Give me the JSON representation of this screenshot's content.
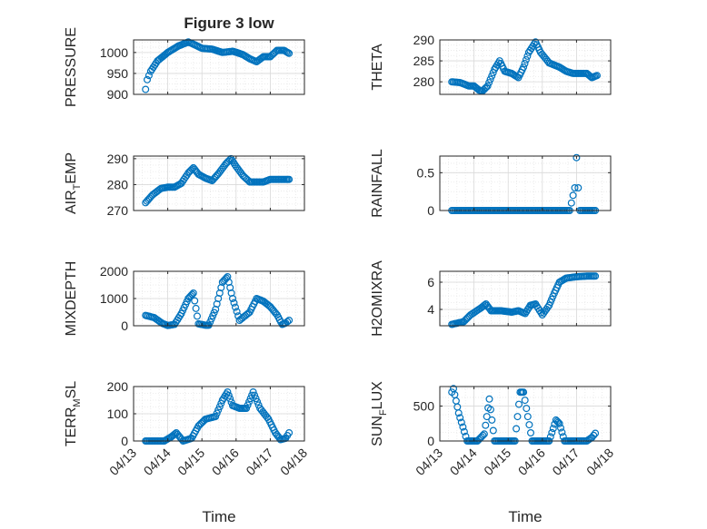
{
  "figure": {
    "title": "Figure 3 low",
    "marker_color": "#0072BD",
    "axis_color": "#262626",
    "grid_color": "#d9d9d9",
    "minor_grid_color": "#e8e8e8"
  },
  "chart_data": [
    {
      "type": "scatter",
      "ylabel": "PRESSURE",
      "ylim": [
        900,
        1030
      ],
      "yticks": [
        "900",
        "950",
        "1000"
      ],
      "ytick_values": [
        900,
        950,
        1000
      ],
      "xlim": [
        0,
        5
      ],
      "xticks": [
        "04/13",
        "04/14",
        "04/15",
        "04/16",
        "04/17",
        "04/18"
      ],
      "show_xticklabels": false,
      "grid": true,
      "anchors": [
        [
          0.35,
          912
        ],
        [
          0.4,
          935
        ],
        [
          0.5,
          955
        ],
        [
          0.7,
          980
        ],
        [
          1.0,
          1000
        ],
        [
          1.3,
          1015
        ],
        [
          1.6,
          1025
        ],
        [
          1.8,
          1018
        ],
        [
          2.0,
          1010
        ],
        [
          2.3,
          1008
        ],
        [
          2.6,
          1000
        ],
        [
          2.9,
          1003
        ],
        [
          3.2,
          995
        ],
        [
          3.4,
          985
        ],
        [
          3.6,
          978
        ],
        [
          3.8,
          990
        ],
        [
          4.0,
          990
        ],
        [
          4.2,
          1005
        ],
        [
          4.4,
          1005
        ],
        [
          4.55,
          998
        ]
      ]
    },
    {
      "type": "scatter",
      "ylabel": "THETA",
      "ylim": [
        277,
        290
      ],
      "yticks": [
        "280",
        "285",
        "290"
      ],
      "ytick_values": [
        280,
        285,
        290
      ],
      "xlim": [
        0,
        5
      ],
      "xticks": [
        "04/13",
        "04/14",
        "04/15",
        "04/16",
        "04/17",
        "04/18"
      ],
      "show_xticklabels": false,
      "grid": true,
      "anchors": [
        [
          0.35,
          280
        ],
        [
          0.6,
          279.8
        ],
        [
          0.85,
          279
        ],
        [
          1.0,
          279
        ],
        [
          1.15,
          278
        ],
        [
          1.25,
          277.8
        ],
        [
          1.4,
          279
        ],
        [
          1.6,
          283
        ],
        [
          1.75,
          285
        ],
        [
          1.9,
          282.5
        ],
        [
          2.1,
          282
        ],
        [
          2.3,
          281
        ],
        [
          2.45,
          283.5
        ],
        [
          2.6,
          287
        ],
        [
          2.8,
          289.5
        ],
        [
          2.95,
          287
        ],
        [
          3.2,
          284.5
        ],
        [
          3.5,
          283.5
        ],
        [
          3.7,
          282.5
        ],
        [
          3.9,
          282
        ],
        [
          4.1,
          282
        ],
        [
          4.3,
          282
        ],
        [
          4.45,
          281
        ],
        [
          4.6,
          281.5
        ]
      ]
    },
    {
      "type": "scatter",
      "ylabel": "AIRTEMP",
      "ylabel_main": "AIR",
      "ylabel_sub": "T",
      "ylabel_rest": "EMP",
      "ylim": [
        270,
        291
      ],
      "yticks": [
        "270",
        "280",
        "290"
      ],
      "ytick_values": [
        270,
        280,
        290
      ],
      "xlim": [
        0,
        5
      ],
      "xticks": [
        "04/13",
        "04/14",
        "04/15",
        "04/16",
        "04/17",
        "04/18"
      ],
      "show_xticklabels": false,
      "grid": true,
      "anchors": [
        [
          0.35,
          273
        ],
        [
          0.55,
          276
        ],
        [
          0.8,
          278.5
        ],
        [
          1.0,
          279
        ],
        [
          1.2,
          279
        ],
        [
          1.4,
          280.5
        ],
        [
          1.6,
          284.5
        ],
        [
          1.75,
          286.5
        ],
        [
          1.9,
          284
        ],
        [
          2.1,
          282.5
        ],
        [
          2.3,
          281.5
        ],
        [
          2.5,
          284.5
        ],
        [
          2.7,
          288
        ],
        [
          2.85,
          290
        ],
        [
          3.0,
          287
        ],
        [
          3.2,
          283.5
        ],
        [
          3.4,
          281
        ],
        [
          3.6,
          281
        ],
        [
          3.8,
          281
        ],
        [
          4.0,
          282
        ],
        [
          4.2,
          282
        ],
        [
          4.4,
          282
        ],
        [
          4.55,
          282
        ]
      ]
    },
    {
      "type": "scatter",
      "ylabel": "RAINFALL",
      "ylim": [
        0,
        0.72
      ],
      "yticks": [
        "0",
        "0.5"
      ],
      "ytick_values": [
        0,
        0.5
      ],
      "xlim": [
        0,
        5
      ],
      "xticks": [
        "04/13",
        "04/14",
        "04/15",
        "04/16",
        "04/17",
        "04/18"
      ],
      "show_xticklabels": false,
      "grid": true,
      "anchors": [
        [
          0.35,
          0
        ],
        [
          3.8,
          0
        ],
        [
          3.95,
          0.3
        ],
        [
          4.0,
          0.7
        ],
        [
          4.05,
          0.3
        ],
        [
          4.1,
          0
        ],
        [
          4.55,
          0
        ]
      ]
    },
    {
      "type": "scatter",
      "ylabel": "MIXDEPTH",
      "ylim": [
        0,
        2000
      ],
      "yticks": [
        "0",
        "1000",
        "2000"
      ],
      "ytick_values": [
        0,
        1000,
        2000
      ],
      "xlim": [
        0,
        5
      ],
      "xticks": [
        "04/13",
        "04/14",
        "04/15",
        "04/16",
        "04/17",
        "04/18"
      ],
      "show_xticklabels": false,
      "grid": true,
      "anchors": [
        [
          0.35,
          380
        ],
        [
          0.6,
          300
        ],
        [
          0.85,
          80
        ],
        [
          1.0,
          10
        ],
        [
          1.2,
          50
        ],
        [
          1.4,
          450
        ],
        [
          1.6,
          1000
        ],
        [
          1.75,
          1200
        ],
        [
          1.9,
          70
        ],
        [
          2.1,
          20
        ],
        [
          2.2,
          20
        ],
        [
          2.4,
          600
        ],
        [
          2.6,
          1600
        ],
        [
          2.75,
          1800
        ],
        [
          2.9,
          1000
        ],
        [
          3.1,
          200
        ],
        [
          3.4,
          500
        ],
        [
          3.6,
          1000
        ],
        [
          3.8,
          900
        ],
        [
          4.0,
          700
        ],
        [
          4.2,
          400
        ],
        [
          4.35,
          50
        ],
        [
          4.45,
          100
        ],
        [
          4.55,
          200
        ]
      ]
    },
    {
      "type": "scatter",
      "ylabel": "H2OMIXRA",
      "ylim": [
        2.8,
        6.8
      ],
      "yticks": [
        "4",
        "6"
      ],
      "ytick_values": [
        4,
        6
      ],
      "xlim": [
        0,
        5
      ],
      "xticks": [
        "04/13",
        "04/14",
        "04/15",
        "04/16",
        "04/17",
        "04/18"
      ],
      "show_xticklabels": false,
      "grid": true,
      "anchors": [
        [
          0.35,
          2.9
        ],
        [
          0.7,
          3.1
        ],
        [
          0.9,
          3.6
        ],
        [
          1.2,
          4.1
        ],
        [
          1.35,
          4.4
        ],
        [
          1.5,
          3.9
        ],
        [
          1.8,
          3.9
        ],
        [
          2.1,
          3.8
        ],
        [
          2.3,
          3.9
        ],
        [
          2.5,
          3.7
        ],
        [
          2.65,
          4.3
        ],
        [
          2.8,
          4.4
        ],
        [
          3.0,
          3.6
        ],
        [
          3.2,
          4.3
        ],
        [
          3.35,
          5.2
        ],
        [
          3.5,
          6.0
        ],
        [
          3.7,
          6.3
        ],
        [
          4.0,
          6.4
        ],
        [
          4.3,
          6.45
        ],
        [
          4.55,
          6.45
        ]
      ]
    },
    {
      "type": "scatter",
      "ylabel": "TERRMSL",
      "ylabel_main": "TERR",
      "ylabel_sub": "M",
      "ylabel_rest": "SL",
      "ylim": [
        0,
        200
      ],
      "yticks": [
        "0",
        "100",
        "200"
      ],
      "ytick_values": [
        0,
        100,
        200
      ],
      "xlim": [
        0,
        5
      ],
      "xticks": [
        "04/13",
        "04/14",
        "04/15",
        "04/16",
        "04/17",
        "04/18"
      ],
      "show_xticklabels": true,
      "xlabel": "Time",
      "grid": true,
      "anchors": [
        [
          0.35,
          0
        ],
        [
          0.9,
          0
        ],
        [
          1.1,
          15
        ],
        [
          1.25,
          30
        ],
        [
          1.45,
          0
        ],
        [
          1.7,
          10
        ],
        [
          1.9,
          55
        ],
        [
          2.1,
          80
        ],
        [
          2.4,
          90
        ],
        [
          2.6,
          150
        ],
        [
          2.75,
          180
        ],
        [
          2.9,
          130
        ],
        [
          3.1,
          120
        ],
        [
          3.3,
          120
        ],
        [
          3.5,
          180
        ],
        [
          3.7,
          120
        ],
        [
          3.95,
          80
        ],
        [
          4.15,
          30
        ],
        [
          4.3,
          5
        ],
        [
          4.45,
          10
        ],
        [
          4.55,
          30
        ]
      ]
    },
    {
      "type": "scatter",
      "ylabel": "SUNFLUX",
      "ylabel_main": "SUN",
      "ylabel_sub": "F",
      "ylabel_rest": "LUX",
      "ylim": [
        0,
        780
      ],
      "yticks": [
        "0",
        "500"
      ],
      "ytick_values": [
        0,
        500
      ],
      "xlim": [
        0,
        5
      ],
      "xticks": [
        "04/13",
        "04/14",
        "04/15",
        "04/16",
        "04/17",
        "04/18"
      ],
      "show_xticklabels": true,
      "xlabel": "Time",
      "grid": true,
      "anchors": [
        [
          0.35,
          700
        ],
        [
          0.4,
          750
        ],
        [
          0.55,
          400
        ],
        [
          0.8,
          0
        ],
        [
          1.1,
          0
        ],
        [
          1.3,
          100
        ],
        [
          1.45,
          600
        ],
        [
          1.6,
          0
        ],
        [
          2.2,
          0
        ],
        [
          2.35,
          700
        ],
        [
          2.45,
          700
        ],
        [
          2.7,
          0
        ],
        [
          3.2,
          0
        ],
        [
          3.4,
          300
        ],
        [
          3.5,
          250
        ],
        [
          3.65,
          0
        ],
        [
          4.0,
          0
        ],
        [
          4.3,
          0
        ],
        [
          4.45,
          50
        ],
        [
          4.55,
          110
        ]
      ]
    }
  ]
}
